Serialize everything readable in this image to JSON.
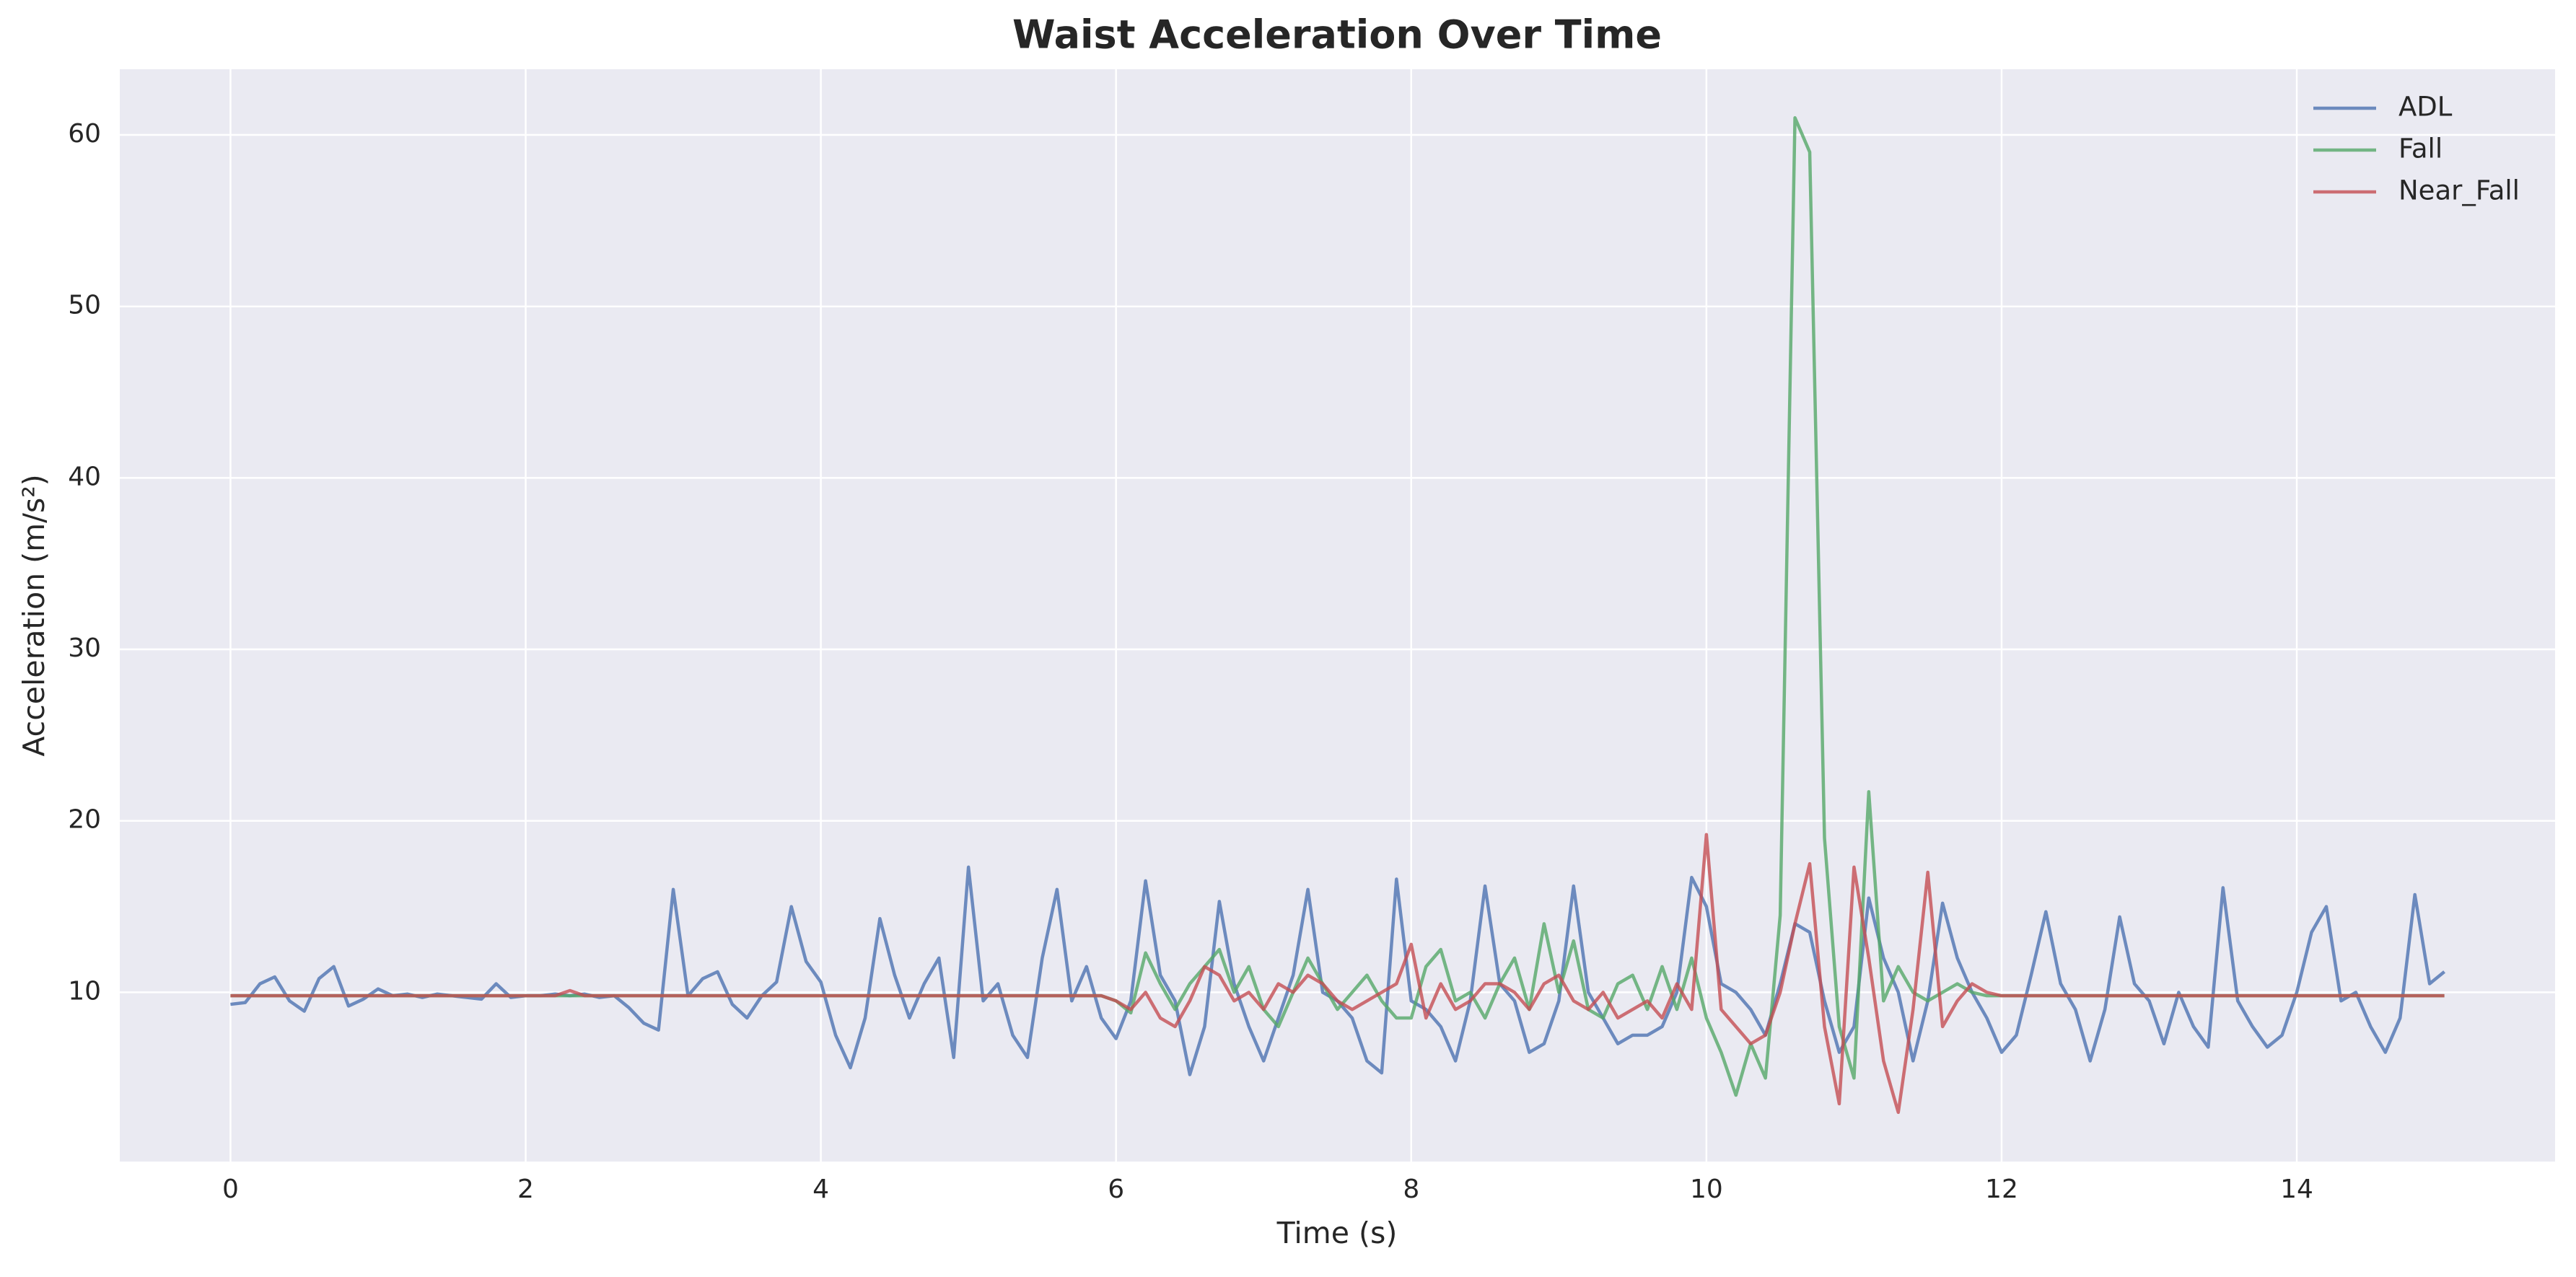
{
  "chart_data": {
    "type": "line",
    "title": "Waist Acceleration Over Time",
    "x_label": "Time (s)",
    "y_label": "Acceleration (m/s²)",
    "x": [
      0,
      0.1,
      0.2,
      0.3,
      0.4,
      0.5,
      0.6,
      0.7,
      0.8,
      0.9,
      1,
      1.1,
      1.2,
      1.3,
      1.4,
      1.5,
      1.6,
      1.7,
      1.8,
      1.9,
      2,
      2.1,
      2.2,
      2.3,
      2.4,
      2.5,
      2.6,
      2.7,
      2.8,
      2.9,
      3,
      3.1,
      3.2,
      3.3,
      3.4,
      3.5,
      3.6,
      3.7,
      3.8,
      3.9,
      4,
      4.1,
      4.2,
      4.3,
      4.4,
      4.5,
      4.6,
      4.7,
      4.8,
      4.9,
      5,
      5.1,
      5.2,
      5.3,
      5.4,
      5.5,
      5.6,
      5.7,
      5.8,
      5.9,
      6,
      6.1,
      6.2,
      6.3,
      6.4,
      6.5,
      6.6,
      6.7,
      6.8,
      6.9,
      7,
      7.1,
      7.2,
      7.3,
      7.4,
      7.5,
      7.6,
      7.7,
      7.8,
      7.9,
      8,
      8.1,
      8.2,
      8.3,
      8.4,
      8.5,
      8.6,
      8.7,
      8.8,
      8.9,
      9,
      9.1,
      9.2,
      9.3,
      9.4,
      9.5,
      9.6,
      9.7,
      9.8,
      9.9,
      10,
      10.1,
      10.2,
      10.3,
      10.4,
      10.5,
      10.6,
      10.7,
      10.8,
      10.9,
      11,
      11.1,
      11.2,
      11.3,
      11.4,
      11.5,
      11.6,
      11.7,
      11.8,
      11.9,
      12,
      12.1,
      12.2,
      12.3,
      12.4,
      12.5,
      12.6,
      12.7,
      12.8,
      12.9,
      13,
      13.1,
      13.2,
      13.3,
      13.4,
      13.5,
      13.6,
      13.7,
      13.8,
      13.9,
      14,
      14.1,
      14.2,
      14.3,
      14.4,
      14.5,
      14.6,
      14.7,
      14.8,
      14.9,
      15
    ],
    "series": [
      {
        "name": "ADL",
        "color": "#4c72b0",
        "values": [
          9.3,
          9.4,
          10.5,
          10.9,
          9.5,
          8.9,
          10.8,
          11.5,
          9.2,
          9.6,
          10.2,
          9.8,
          9.9,
          9.7,
          9.9,
          9.8,
          9.7,
          9.6,
          10.5,
          9.7,
          9.8,
          9.8,
          9.9,
          9.8,
          9.9,
          9.7,
          9.8,
          9.1,
          8.2,
          7.8,
          16,
          9.8,
          10.8,
          11.2,
          9.3,
          8.5,
          9.8,
          10.6,
          15,
          11.8,
          10.6,
          7.5,
          5.6,
          8.5,
          14.3,
          11,
          8.5,
          10.5,
          12,
          6.2,
          17.3,
          9.5,
          10.5,
          7.5,
          6.2,
          12,
          16,
          9.5,
          11.5,
          8.5,
          7.3,
          9.5,
          16.5,
          11,
          9.5,
          5.2,
          8,
          15.3,
          10.5,
          8,
          6,
          8.5,
          11,
          16,
          10,
          9.5,
          8.5,
          6,
          5.3,
          16.6,
          9.5,
          9,
          8,
          6,
          9.5,
          16.2,
          10.5,
          9.5,
          6.5,
          7,
          9.5,
          16.2,
          10,
          8.5,
          7,
          7.5,
          7.5,
          8,
          10,
          16.7,
          15,
          10.5,
          10,
          9,
          7.5,
          10.5,
          14,
          13.5,
          9.5,
          6.5,
          8,
          15.5,
          12,
          10,
          6,
          9.5,
          15.2,
          12,
          10,
          8.5,
          6.5,
          7.5,
          11,
          14.7,
          10.5,
          9,
          6,
          9,
          14.4,
          10.5,
          9.5,
          7,
          10,
          8,
          6.8,
          16.1,
          9.5,
          8,
          6.8,
          7.5,
          10,
          13.5,
          15,
          9.5,
          10,
          8,
          6.5,
          8.5,
          15.7,
          10.5,
          11.2
        ]
      },
      {
        "name": "Fall",
        "color": "#55a868",
        "values": [
          9.8,
          9.8,
          9.8,
          9.8,
          9.8,
          9.8,
          9.8,
          9.8,
          9.8,
          9.8,
          9.8,
          9.8,
          9.8,
          9.8,
          9.8,
          9.8,
          9.8,
          9.8,
          9.8,
          9.8,
          9.8,
          9.8,
          9.8,
          9.8,
          9.8,
          9.8,
          9.8,
          9.8,
          9.8,
          9.8,
          9.8,
          9.8,
          9.8,
          9.8,
          9.8,
          9.8,
          9.8,
          9.8,
          9.8,
          9.8,
          9.8,
          9.8,
          9.8,
          9.8,
          9.8,
          9.8,
          9.8,
          9.8,
          9.8,
          9.8,
          9.8,
          9.8,
          9.8,
          9.8,
          9.8,
          9.8,
          9.8,
          9.8,
          9.8,
          9.8,
          9.5,
          8.8,
          12.3,
          10.5,
          9,
          10.5,
          11.5,
          12.5,
          10,
          11.5,
          9,
          8,
          10,
          12,
          10.5,
          9,
          10,
          11,
          9.5,
          8.5,
          8.5,
          11.5,
          12.5,
          9.5,
          10,
          8.5,
          10.5,
          12,
          9,
          14,
          10,
          13,
          9,
          8.5,
          10.5,
          11,
          9,
          11.5,
          9,
          12,
          8.5,
          6.5,
          4,
          7,
          5,
          14.5,
          61,
          59,
          19,
          8,
          5,
          21.7,
          9.5,
          11.5,
          10,
          9.5,
          10,
          10.5,
          10,
          9.8,
          9.8,
          9.8,
          9.8,
          9.8,
          9.8,
          9.8,
          9.8,
          9.8,
          9.8,
          9.8,
          9.8,
          9.8,
          9.8,
          9.8,
          9.8,
          9.8,
          9.8,
          9.8,
          9.8,
          9.8,
          9.8,
          9.8,
          9.8,
          9.8,
          9.8,
          9.8,
          9.8,
          9.8,
          9.8,
          9.8,
          9.8
        ]
      },
      {
        "name": "Near_Fall",
        "color": "#c44e52",
        "values": [
          9.8,
          9.8,
          9.8,
          9.8,
          9.8,
          9.8,
          9.8,
          9.8,
          9.8,
          9.8,
          9.8,
          9.8,
          9.8,
          9.8,
          9.8,
          9.8,
          9.8,
          9.8,
          9.8,
          9.8,
          9.8,
          9.8,
          9.8,
          10.1,
          9.8,
          9.8,
          9.8,
          9.8,
          9.8,
          9.8,
          9.8,
          9.8,
          9.8,
          9.8,
          9.8,
          9.8,
          9.8,
          9.8,
          9.8,
          9.8,
          9.8,
          9.8,
          9.8,
          9.8,
          9.8,
          9.8,
          9.8,
          9.8,
          9.8,
          9.8,
          9.8,
          9.8,
          9.8,
          9.8,
          9.8,
          9.8,
          9.8,
          9.8,
          9.8,
          9.8,
          9.5,
          9,
          10,
          8.5,
          8,
          9.5,
          11.5,
          11,
          9.5,
          10,
          9,
          10.5,
          10,
          11,
          10.5,
          9.5,
          9,
          9.5,
          10,
          10.5,
          12.8,
          8.5,
          10.5,
          9,
          9.5,
          10.5,
          10.5,
          10,
          9,
          10.5,
          11,
          9.5,
          9,
          10,
          8.5,
          9,
          9.5,
          8.5,
          10.5,
          9,
          19.2,
          9,
          8,
          7,
          7.5,
          10,
          14,
          17.5,
          8,
          3.5,
          17.3,
          12,
          6,
          3,
          9,
          17,
          8,
          9.5,
          10.5,
          10,
          9.8,
          9.8,
          9.8,
          9.8,
          9.8,
          9.8,
          9.8,
          9.8,
          9.8,
          9.8,
          9.8,
          9.8,
          9.8,
          9.8,
          9.8,
          9.8,
          9.8,
          9.8,
          9.8,
          9.8,
          9.8,
          9.8,
          9.8,
          9.8,
          9.8,
          9.8,
          9.8,
          9.8,
          9.8,
          9.8,
          9.8
        ]
      }
    ],
    "xlim": [
      -0.75,
      15.75
    ],
    "xticks": [
      0,
      2,
      4,
      6,
      8,
      10,
      12,
      14
    ],
    "ylim": [
      0.13,
      63.83
    ],
    "yticks": [
      10,
      20,
      30,
      40,
      50,
      60
    ],
    "grid": true,
    "legend": "upper right"
  }
}
